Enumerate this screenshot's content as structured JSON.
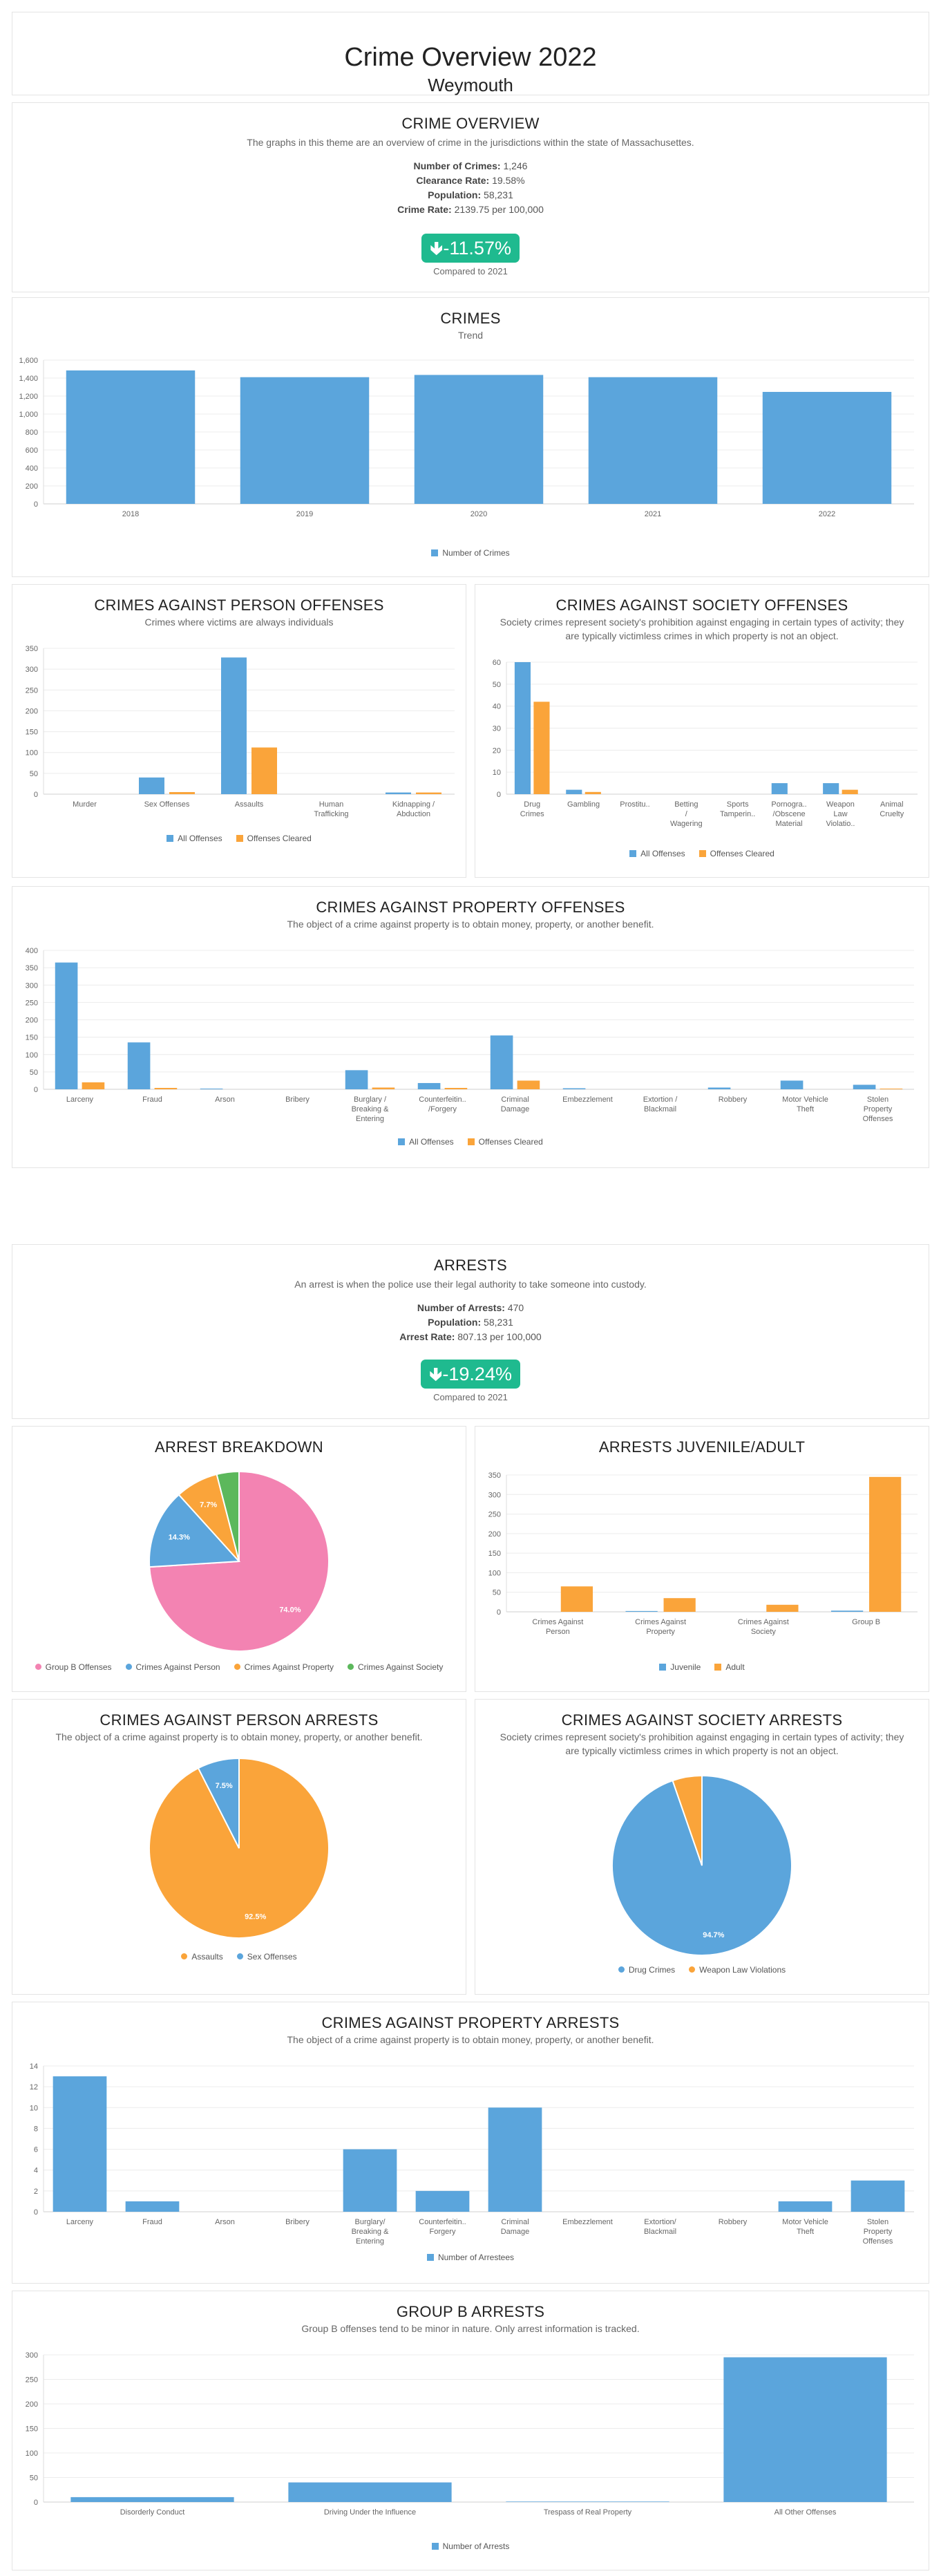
{
  "header": {
    "title": "Crime Overview 2022",
    "city": "Weymouth"
  },
  "overview": {
    "title": "CRIME OVERVIEW",
    "desc": "The graphs in this theme are an overview of crime in the jurisdictions within the state of Massachusettes.",
    "crimes_label": "Number of Crimes:",
    "crimes_value": "1,246",
    "clearance_label": "Clearance Rate:",
    "clearance_value": "19.58%",
    "population_label": "Population:",
    "population_value": "58,231",
    "rate_label": "Crime Rate:",
    "rate_value": "2139.75 per 100,000",
    "change": "-11.57%",
    "compared": "Compared to 2021"
  },
  "crimes": {
    "title": "CRIMES",
    "desc": "Trend"
  },
  "person_off": {
    "title": "CRIMES AGAINST PERSON OFFENSES",
    "desc": "Crimes where victims are always individuals"
  },
  "society_off": {
    "title": "CRIMES AGAINST SOCIETY OFFENSES",
    "desc": "Society crimes represent society's prohibition against engaging in certain types of activity; they are typically victimless crimes in which property is not an object."
  },
  "property_off": {
    "title": "CRIMES AGAINST PROPERTY OFFENSES",
    "desc": "The object of a crime against property is to obtain money, property, or another benefit."
  },
  "arrests": {
    "title": "ARRESTS",
    "desc": "An arrest is when the police use their legal authority to take someone into custody.",
    "arrests_label": "Number of Arrests:",
    "arrests_value": "470",
    "population_label": "Population:",
    "population_value": "58,231",
    "rate_label": "Arrest Rate:",
    "rate_value": "807.13 per 100,000",
    "change": "-19.24%",
    "compared": "Compared to 2021"
  },
  "breakdown": {
    "title": "ARREST BREAKDOWN"
  },
  "juvenile": {
    "title": "ARRESTS JUVENILE/ADULT"
  },
  "person_arr": {
    "title": "CRIMES AGAINST PERSON ARRESTS",
    "desc": "The object of a crime against property is to obtain money, property, or another benefit."
  },
  "society_arr": {
    "title": "CRIMES AGAINST SOCIETY ARRESTS",
    "desc": "Society crimes represent society's prohibition against engaging in certain types of activity; they are typically victimless crimes in which property is not an object."
  },
  "property_arr": {
    "title": "CRIMES AGAINST PROPERTY ARRESTS",
    "desc": "The object of a crime against property is to obtain money, property, or another benefit."
  },
  "groupb": {
    "title": "GROUP B ARRESTS",
    "desc": "Group B offenses tend to be minor in nature. Only arrest information is tracked."
  },
  "colors": {
    "blue": "#5ba5dc",
    "orange": "#faa43a",
    "pink": "#f383b2",
    "green": "#5cb85c",
    "teal": "#1fba8f"
  },
  "chart_data": [
    {
      "id": "crimes",
      "type": "bar",
      "categories": [
        "2018",
        "2019",
        "2020",
        "2021",
        "2022"
      ],
      "series": [
        {
          "name": "Number of Crimes",
          "values": [
            1485,
            1410,
            1435,
            1410,
            1246
          ]
        }
      ],
      "ylim": [
        0,
        1600
      ],
      "ticks": [
        0,
        200,
        400,
        600,
        800,
        1000,
        1200,
        1400,
        1600
      ]
    },
    {
      "id": "person_off",
      "type": "bar",
      "categories": [
        [
          "Murder"
        ],
        [
          "Sex Offenses"
        ],
        [
          "Assaults"
        ],
        [
          "Human",
          "Trafficking"
        ],
        [
          "Kidnapping /",
          "Abduction"
        ]
      ],
      "series": [
        {
          "name": "All Offenses",
          "values": [
            0,
            40,
            328,
            0,
            4
          ]
        },
        {
          "name": "Offenses Cleared",
          "values": [
            0,
            5,
            112,
            0,
            4
          ]
        }
      ],
      "ylim": [
        0,
        350
      ],
      "ticks": [
        0,
        50,
        100,
        150,
        200,
        250,
        300,
        350
      ]
    },
    {
      "id": "society_off",
      "type": "bar",
      "categories": [
        [
          "Drug",
          "Crimes"
        ],
        [
          "Gambling"
        ],
        [
          "Prostitu.."
        ],
        [
          "Betting",
          "/",
          "Wagering"
        ],
        [
          "Sports",
          "Tamperin.."
        ],
        [
          "Pornogra..",
          "/Obscene",
          "Material"
        ],
        [
          "Weapon",
          "Law",
          "Violatio.."
        ],
        [
          "Animal",
          "Cruelty"
        ]
      ],
      "series": [
        {
          "name": "All Offenses",
          "values": [
            60,
            2,
            0,
            0,
            0,
            5,
            5,
            0
          ]
        },
        {
          "name": "Offenses Cleared",
          "values": [
            42,
            1,
            0,
            0,
            0,
            0,
            2,
            0
          ]
        }
      ],
      "ylim": [
        0,
        60
      ],
      "ticks": [
        0,
        10,
        20,
        30,
        40,
        50,
        60
      ]
    },
    {
      "id": "property_off",
      "type": "bar",
      "categories": [
        [
          "Larceny"
        ],
        [
          "Fraud"
        ],
        [
          "Arson"
        ],
        [
          "Bribery"
        ],
        [
          "Burglary /",
          "Breaking &",
          "Entering"
        ],
        [
          "Counterfeitin..",
          "/Forgery"
        ],
        [
          "Criminal",
          "Damage"
        ],
        [
          "Embezzlement"
        ],
        [
          "Extortion /",
          "Blackmail"
        ],
        [
          "Robbery"
        ],
        [
          "Motor Vehicle",
          "Theft"
        ],
        [
          "Stolen",
          "Property",
          "Offenses"
        ]
      ],
      "series": [
        {
          "name": "All Offenses",
          "values": [
            365,
            135,
            2,
            0,
            55,
            18,
            155,
            3,
            0,
            5,
            25,
            13
          ]
        },
        {
          "name": "Offenses Cleared",
          "values": [
            20,
            4,
            0,
            0,
            5,
            4,
            25,
            0,
            0,
            0,
            0,
            2
          ]
        }
      ],
      "ylim": [
        0,
        400
      ],
      "ticks": [
        0,
        50,
        100,
        150,
        200,
        250,
        300,
        350,
        400
      ]
    },
    {
      "id": "breakdown",
      "type": "pie",
      "series": [
        {
          "name": "Group B Offenses",
          "value": 74.0,
          "label": "74.0%"
        },
        {
          "name": "Crimes Against Person",
          "value": 14.3,
          "label": "14.3%"
        },
        {
          "name": "Crimes Against Property",
          "value": 7.7,
          "label": "7.7%"
        },
        {
          "name": "Crimes Against Society",
          "value": 4.0,
          "label": ""
        }
      ]
    },
    {
      "id": "juvenile",
      "type": "bar",
      "categories": [
        [
          "Crimes Against",
          "Person"
        ],
        [
          "Crimes Against",
          "Property"
        ],
        [
          "Crimes Against",
          "Society"
        ],
        [
          "Group B"
        ]
      ],
      "series": [
        {
          "name": "Juvenile",
          "values": [
            0,
            2,
            0,
            3
          ]
        },
        {
          "name": "Adult",
          "values": [
            65,
            35,
            18,
            345
          ]
        }
      ],
      "ylim": [
        0,
        350
      ],
      "ticks": [
        0,
        50,
        100,
        150,
        200,
        250,
        300,
        350
      ]
    },
    {
      "id": "person_arr",
      "type": "pie",
      "series": [
        {
          "name": "Assaults",
          "value": 92.5,
          "label": "92.5%"
        },
        {
          "name": "Sex Offenses",
          "value": 7.5,
          "label": "7.5%"
        }
      ]
    },
    {
      "id": "society_arr",
      "type": "pie",
      "series": [
        {
          "name": "Drug Crimes",
          "value": 94.7,
          "label": "94.7%"
        },
        {
          "name": "Weapon Law Violations",
          "value": 5.3,
          "label": ""
        }
      ]
    },
    {
      "id": "property_arr",
      "type": "bar",
      "categories": [
        [
          "Larceny"
        ],
        [
          "Fraud"
        ],
        [
          "Arson"
        ],
        [
          "Bribery"
        ],
        [
          "Burglary/",
          "Breaking &",
          "Entering"
        ],
        [
          "Counterfeitin..",
          "Forgery"
        ],
        [
          "Criminal",
          "Damage"
        ],
        [
          "Embezzlement"
        ],
        [
          "Extortion/",
          "Blackmail"
        ],
        [
          "Robbery"
        ],
        [
          "Motor Vehicle",
          "Theft"
        ],
        [
          "Stolen",
          "Property",
          "Offenses"
        ]
      ],
      "series": [
        {
          "name": "Number of Arrestees",
          "values": [
            13,
            1,
            0,
            0,
            6,
            2,
            10,
            0,
            0,
            0,
            1,
            3
          ]
        }
      ],
      "ylim": [
        0,
        14
      ],
      "ticks": [
        0,
        2,
        4,
        6,
        8,
        10,
        12,
        14
      ]
    },
    {
      "id": "groupb",
      "type": "bar",
      "categories": [
        [
          "Disorderly Conduct"
        ],
        [
          "Driving Under the Influence"
        ],
        [
          "Trespass of Real Property"
        ],
        [
          "All Other Offenses"
        ]
      ],
      "series": [
        {
          "name": "Number of Arrests",
          "values": [
            10,
            40,
            1,
            295
          ]
        }
      ],
      "ylim": [
        0,
        300
      ],
      "ticks": [
        0,
        50,
        100,
        150,
        200,
        250,
        300
      ]
    }
  ]
}
